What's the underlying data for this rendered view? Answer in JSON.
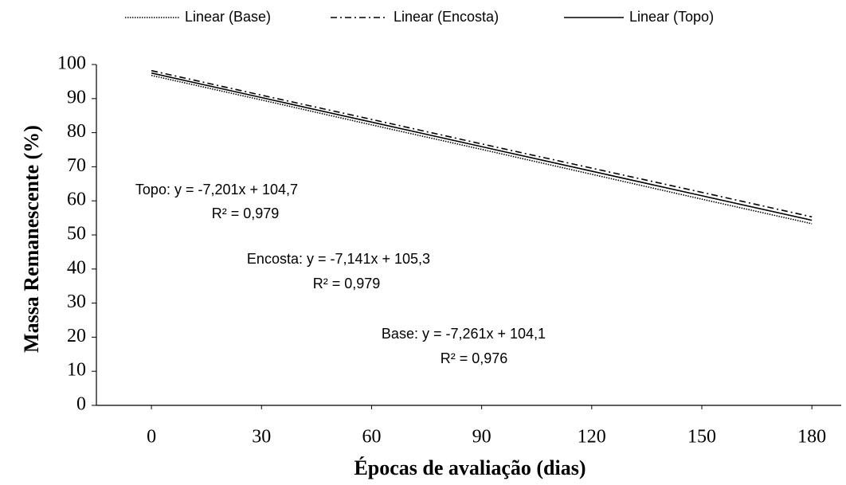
{
  "chart_data": {
    "type": "line",
    "x_label": "Épocas de avaliação (dias)",
    "y_label": "Massa Remanescente (%)",
    "x": [
      0,
      30,
      60,
      90,
      120,
      150,
      180
    ],
    "xlim": [
      -15,
      188
    ],
    "xticks": [
      0,
      30,
      60,
      90,
      120,
      150,
      180
    ],
    "ylim": [
      0,
      100
    ],
    "yticks": [
      0,
      10,
      20,
      30,
      40,
      50,
      60,
      70,
      80,
      90,
      100
    ],
    "series": [
      {
        "name": "Linear (Base)",
        "color": "#000000",
        "style": "dotted",
        "values": [
          96.8,
          89.6,
          82.3,
          75.1,
          67.8,
          60.5,
          53.3
        ]
      },
      {
        "name": "Linear (Encosta)",
        "color": "#000000",
        "style": "dashdot",
        "values": [
          98.2,
          91.0,
          83.9,
          76.7,
          69.6,
          62.5,
          55.3
        ]
      },
      {
        "name": "Linear (Topo)",
        "color": "#000000",
        "style": "solid",
        "values": [
          97.5,
          90.3,
          83.1,
          75.9,
          68.7,
          61.5,
          54.3
        ]
      }
    ],
    "annotations": [
      "Topo: y = -7,201x + 104,7",
      "R² = 0,979",
      "Encosta: y = -7,141x + 105,3",
      "R² = 0,979",
      "Base: y = -7,261x + 104,1",
      "R² = 0,976"
    ]
  }
}
